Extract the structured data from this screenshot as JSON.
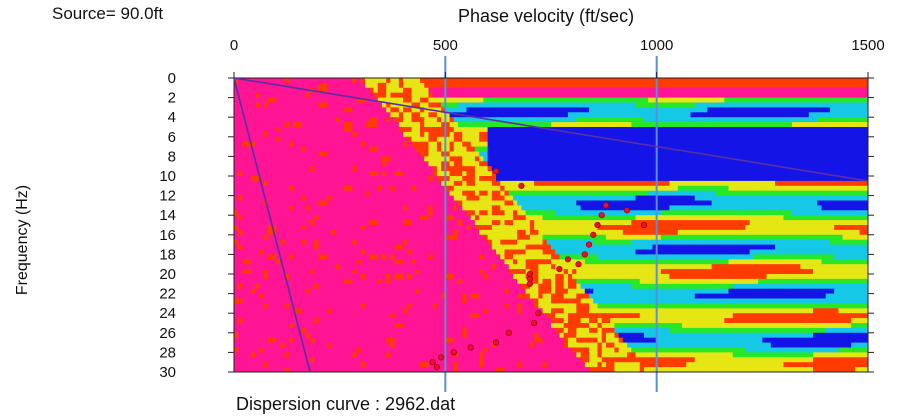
{
  "header": {
    "source_label": "Source= 90.0ft"
  },
  "footer": {
    "caption": "Dispersion curve : 2962.dat"
  },
  "chart_data": {
    "type": "heatmap",
    "title": "",
    "xlabel": "Phase velocity (ft/sec)",
    "ylabel": "Frequency (Hz)",
    "x_axis_position": "top",
    "xlim": [
      0,
      1500
    ],
    "ylim": [
      0,
      30
    ],
    "y_inverted": true,
    "x_ticks": [
      0,
      500,
      1000,
      1500
    ],
    "y_ticks": [
      0,
      2,
      4,
      6,
      8,
      10,
      12,
      14,
      16,
      18,
      20,
      22,
      24,
      26,
      28,
      30
    ],
    "gridlines_x": [
      500,
      1000
    ],
    "colormap": [
      "#1414e6",
      "#14c8e6",
      "#28e628",
      "#e6e614",
      "#ff3c00",
      "#ff1493"
    ],
    "dispersion_points": [
      {
        "x": 880,
        "y": 13
      },
      {
        "x": 930,
        "y": 13.5
      },
      {
        "x": 870,
        "y": 14
      },
      {
        "x": 860,
        "y": 15
      },
      {
        "x": 970,
        "y": 15
      },
      {
        "x": 850,
        "y": 16
      },
      {
        "x": 840,
        "y": 17
      },
      {
        "x": 830,
        "y": 18
      },
      {
        "x": 815,
        "y": 19
      },
      {
        "x": 790,
        "y": 18.5
      },
      {
        "x": 770,
        "y": 19.5
      },
      {
        "x": 700,
        "y": 20
      },
      {
        "x": 700,
        "y": 20.5
      },
      {
        "x": 700,
        "y": 21
      },
      {
        "x": 720,
        "y": 24
      },
      {
        "x": 710,
        "y": 25
      },
      {
        "x": 650,
        "y": 26
      },
      {
        "x": 620,
        "y": 27
      },
      {
        "x": 560,
        "y": 27.5
      },
      {
        "x": 520,
        "y": 28
      },
      {
        "x": 490,
        "y": 28.5
      },
      {
        "x": 470,
        "y": 29
      },
      {
        "x": 480,
        "y": 29.5
      },
      {
        "x": 620,
        "y": 9.5
      },
      {
        "x": 680,
        "y": 11
      }
    ],
    "guide_lines": [
      {
        "x1": 0,
        "y1": 0,
        "x2": 180,
        "y2": 30,
        "color": "#5a2ea6"
      },
      {
        "x1": 0,
        "y1": 0,
        "x2": 1500,
        "y2": 10.5,
        "color": "#5a2ea6"
      }
    ]
  }
}
